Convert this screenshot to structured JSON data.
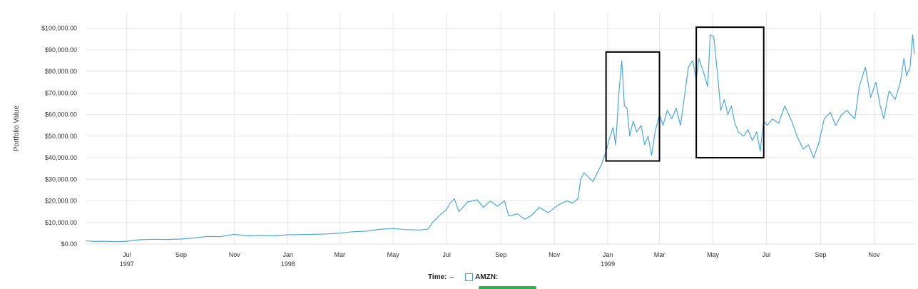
{
  "chart_data": {
    "type": "line",
    "ylabel": "Portfolio Value",
    "ylim": [
      0,
      100000
    ],
    "y_ticks": [
      "$0.00",
      "$10,000.00",
      "$20,000.00",
      "$30,000.00",
      "$40,000.00",
      "$50,000.00",
      "$60,000.00",
      "$70,000.00",
      "$80,000.00",
      "$90,000.00",
      "$100,000.00"
    ],
    "x_ticks": [
      {
        "date": "1997-07-01",
        "label": "Jul",
        "year": "1997"
      },
      {
        "date": "1997-09-01",
        "label": "Sep",
        "year": ""
      },
      {
        "date": "1997-11-01",
        "label": "Nov",
        "year": ""
      },
      {
        "date": "1998-01-01",
        "label": "Jan",
        "year": "1998"
      },
      {
        "date": "1998-03-01",
        "label": "Mar",
        "year": ""
      },
      {
        "date": "1998-05-01",
        "label": "May",
        "year": ""
      },
      {
        "date": "1998-07-01",
        "label": "Jul",
        "year": ""
      },
      {
        "date": "1998-09-01",
        "label": "Sep",
        "year": ""
      },
      {
        "date": "1998-11-01",
        "label": "Nov",
        "year": ""
      },
      {
        "date": "1999-01-01",
        "label": "Jan",
        "year": "1999"
      },
      {
        "date": "1999-03-01",
        "label": "Mar",
        "year": ""
      },
      {
        "date": "1999-05-01",
        "label": "May",
        "year": ""
      },
      {
        "date": "1999-07-01",
        "label": "Jul",
        "year": ""
      },
      {
        "date": "1999-09-01",
        "label": "Sep",
        "year": ""
      },
      {
        "date": "1999-11-01",
        "label": "Nov",
        "year": ""
      }
    ],
    "grid": true,
    "series": [
      {
        "name": "AMZN",
        "color": "#4aa9e0",
        "points": [
          [
            "1997-05-15",
            1500
          ],
          [
            "1997-05-25",
            1200
          ],
          [
            "1997-06-05",
            1300
          ],
          [
            "1997-06-20",
            1100
          ],
          [
            "1997-07-01",
            1300
          ],
          [
            "1997-07-15",
            2000
          ],
          [
            "1997-08-01",
            2200
          ],
          [
            "1997-08-15",
            2100
          ],
          [
            "1997-09-01",
            2300
          ],
          [
            "1997-09-15",
            2800
          ],
          [
            "1997-10-01",
            3500
          ],
          [
            "1997-10-15",
            3400
          ],
          [
            "1997-11-01",
            4500
          ],
          [
            "1997-11-15",
            3800
          ],
          [
            "1997-12-01",
            4000
          ],
          [
            "1997-12-15",
            3800
          ],
          [
            "1998-01-01",
            4300
          ],
          [
            "1998-01-15",
            4400
          ],
          [
            "1998-02-01",
            4500
          ],
          [
            "1998-02-15",
            4700
          ],
          [
            "1998-03-01",
            5000
          ],
          [
            "1998-03-15",
            5700
          ],
          [
            "1998-04-01",
            6000
          ],
          [
            "1998-04-15",
            6800
          ],
          [
            "1998-05-01",
            7200
          ],
          [
            "1998-05-15",
            6700
          ],
          [
            "1998-06-01",
            6500
          ],
          [
            "1998-06-10",
            7000
          ],
          [
            "1998-06-15",
            10000
          ],
          [
            "1998-06-25",
            14000
          ],
          [
            "1998-07-01",
            16000
          ],
          [
            "1998-07-05",
            19000
          ],
          [
            "1998-07-10",
            21000
          ],
          [
            "1998-07-15",
            15000
          ],
          [
            "1998-07-25",
            19500
          ],
          [
            "1998-08-05",
            20500
          ],
          [
            "1998-08-12",
            17000
          ],
          [
            "1998-08-20",
            20000
          ],
          [
            "1998-08-28",
            17500
          ],
          [
            "1998-09-05",
            20000
          ],
          [
            "1998-09-10",
            13000
          ],
          [
            "1998-09-20",
            14000
          ],
          [
            "1998-09-28",
            11500
          ],
          [
            "1998-10-05",
            13000
          ],
          [
            "1998-10-15",
            17000
          ],
          [
            "1998-10-25",
            14500
          ],
          [
            "1998-11-05",
            18000
          ],
          [
            "1998-11-15",
            20000
          ],
          [
            "1998-11-22",
            19000
          ],
          [
            "1998-11-28",
            21000
          ],
          [
            "1998-12-01",
            30000
          ],
          [
            "1998-12-05",
            33000
          ],
          [
            "1998-12-10",
            31000
          ],
          [
            "1998-12-15",
            29000
          ],
          [
            "1998-12-20",
            33000
          ],
          [
            "1998-12-25",
            37000
          ],
          [
            "1998-12-30",
            43000
          ],
          [
            "1999-01-03",
            49000
          ],
          [
            "1999-01-07",
            54000
          ],
          [
            "1999-01-10",
            46000
          ],
          [
            "1999-01-14",
            72000
          ],
          [
            "1999-01-17",
            85000
          ],
          [
            "1999-01-20",
            64000
          ],
          [
            "1999-01-23",
            63000
          ],
          [
            "1999-01-26",
            50000
          ],
          [
            "1999-01-30",
            57000
          ],
          [
            "1999-02-03",
            52000
          ],
          [
            "1999-02-08",
            55000
          ],
          [
            "1999-02-12",
            46000
          ],
          [
            "1999-02-16",
            50000
          ],
          [
            "1999-02-20",
            41000
          ],
          [
            "1999-02-24",
            52000
          ],
          [
            "1999-03-01",
            60000
          ],
          [
            "1999-03-05",
            55000
          ],
          [
            "1999-03-10",
            62000
          ],
          [
            "1999-03-15",
            58000
          ],
          [
            "1999-03-20",
            63000
          ],
          [
            "1999-03-25",
            55000
          ],
          [
            "1999-03-30",
            70000
          ],
          [
            "1999-04-03",
            82000
          ],
          [
            "1999-04-08",
            85000
          ],
          [
            "1999-04-12",
            76000
          ],
          [
            "1999-04-15",
            86000
          ],
          [
            "1999-04-20",
            80000
          ],
          [
            "1999-04-25",
            73000
          ],
          [
            "1999-04-28",
            97000
          ],
          [
            "1999-05-02",
            96000
          ],
          [
            "1999-05-06",
            80000
          ],
          [
            "1999-05-10",
            62000
          ],
          [
            "1999-05-14",
            67000
          ],
          [
            "1999-05-18",
            60000
          ],
          [
            "1999-05-22",
            64000
          ],
          [
            "1999-05-26",
            56000
          ],
          [
            "1999-05-30",
            52000
          ],
          [
            "1999-06-05",
            50000
          ],
          [
            "1999-06-10",
            53000
          ],
          [
            "1999-06-15",
            48000
          ],
          [
            "1999-06-20",
            52000
          ],
          [
            "1999-06-24",
            43000
          ],
          [
            "1999-06-28",
            57000
          ],
          [
            "1999-07-02",
            55000
          ],
          [
            "1999-07-08",
            58000
          ],
          [
            "1999-07-15",
            56000
          ],
          [
            "1999-07-22",
            64000
          ],
          [
            "1999-07-30",
            57000
          ],
          [
            "1999-08-05",
            50000
          ],
          [
            "1999-08-12",
            44000
          ],
          [
            "1999-08-18",
            46000
          ],
          [
            "1999-08-24",
            40000
          ],
          [
            "1999-08-30",
            47000
          ],
          [
            "1999-09-05",
            58000
          ],
          [
            "1999-09-12",
            61000
          ],
          [
            "1999-09-18",
            55000
          ],
          [
            "1999-09-25",
            60000
          ],
          [
            "1999-10-01",
            62000
          ],
          [
            "1999-10-05",
            60000
          ],
          [
            "1999-10-10",
            58000
          ],
          [
            "1999-10-15",
            73000
          ],
          [
            "1999-10-22",
            82000
          ],
          [
            "1999-10-28",
            68000
          ],
          [
            "1999-11-03",
            75000
          ],
          [
            "1999-11-08",
            64000
          ],
          [
            "1999-11-12",
            58000
          ],
          [
            "1999-11-18",
            71000
          ],
          [
            "1999-11-25",
            67000
          ],
          [
            "1999-12-01",
            75000
          ],
          [
            "1999-12-05",
            86000
          ],
          [
            "1999-12-08",
            78000
          ],
          [
            "1999-12-12",
            82000
          ],
          [
            "1999-12-15",
            97000
          ],
          [
            "1999-12-17",
            88000
          ]
        ]
      }
    ],
    "highlight_boxes": [
      {
        "x0": "1998-12-30",
        "x1": "1999-03-01",
        "y0": 38500,
        "y1": 89000
      },
      {
        "x0": "1999-04-12",
        "x1": "1999-06-28",
        "y0": 40000,
        "y1": 100500
      }
    ]
  },
  "legend": {
    "time_label": "Time:",
    "time_value": "–",
    "series_label": "AMZN:",
    "series_color": "#3ba1dc",
    "bar_color": "#2db34a"
  }
}
